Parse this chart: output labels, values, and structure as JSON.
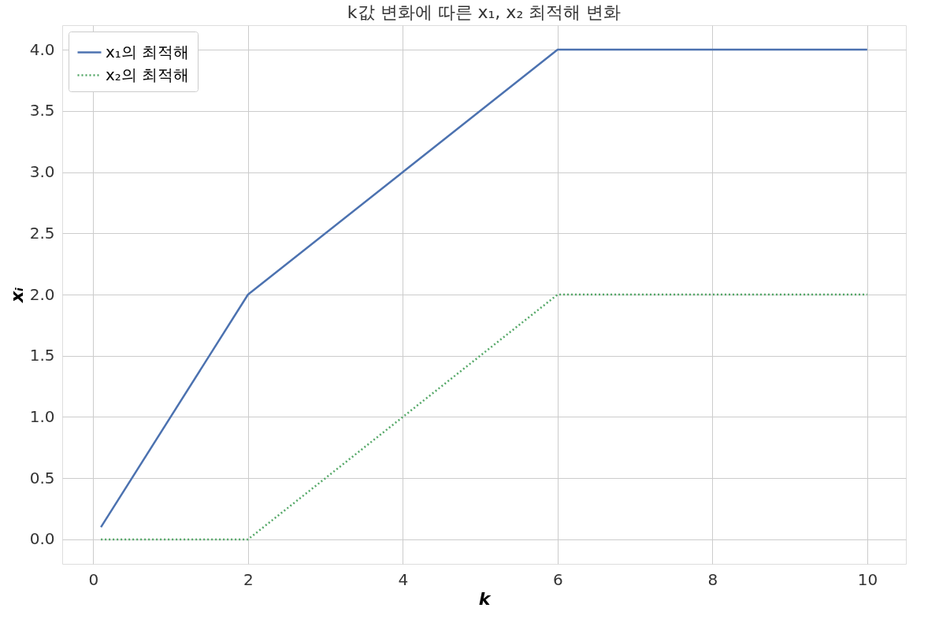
{
  "chart_data": {
    "type": "line",
    "title": "k값 변화에 따른 x₁, x₂ 최적해 변화",
    "xlabel": "k",
    "ylabel": "xᵢ",
    "series": [
      {
        "name": "x₁의 최적해",
        "color": "#4c72b0",
        "line_style": "solid",
        "x": [
          0.1,
          2,
          6,
          10
        ],
        "values": [
          0.1,
          2,
          4,
          4
        ]
      },
      {
        "name": "x₂의 최적해",
        "color": "#55a868",
        "line_style": "dotted",
        "x": [
          0.1,
          2,
          6,
          10
        ],
        "values": [
          0,
          0,
          2,
          2
        ]
      }
    ],
    "xlim": [
      -0.4,
      10.5
    ],
    "ylim": [
      -0.2,
      4.2
    ],
    "xticks": [
      0,
      2,
      4,
      6,
      8,
      10
    ],
    "yticks": [
      {
        "value": 0,
        "label": "0.0"
      },
      {
        "value": 0.5,
        "label": "0.5"
      },
      {
        "value": 1,
        "label": "1.0"
      },
      {
        "value": 1.5,
        "label": "1.5"
      },
      {
        "value": 2,
        "label": "2.0"
      },
      {
        "value": 2.5,
        "label": "2.5"
      },
      {
        "value": 3,
        "label": "3.0"
      },
      {
        "value": 3.5,
        "label": "3.5"
      },
      {
        "value": 4,
        "label": "4.0"
      }
    ],
    "grid": true,
    "legend": "top left",
    "marker": "none"
  }
}
